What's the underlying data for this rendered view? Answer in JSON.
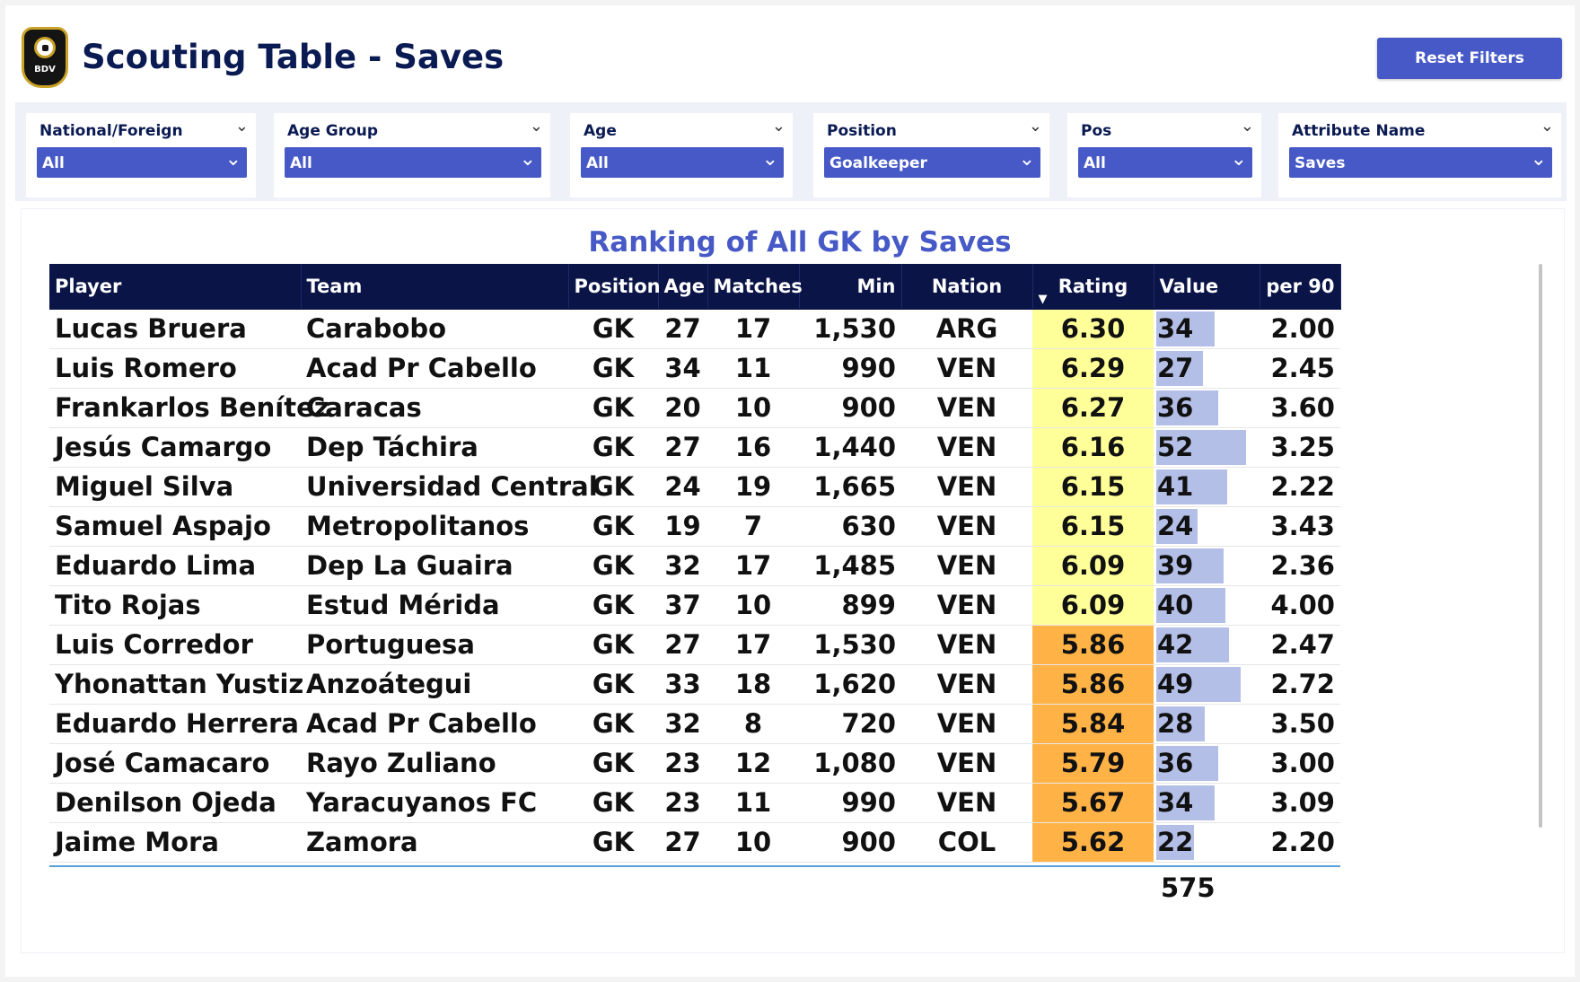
{
  "header": {
    "logo_text": "BDV",
    "title": "Scouting Table - Saves",
    "reset_label": "Reset Filters"
  },
  "filters": [
    {
      "label": "National/Foreign",
      "value": "All"
    },
    {
      "label": "Age Group",
      "value": "All"
    },
    {
      "label": "Age",
      "value": "All"
    },
    {
      "label": "Position",
      "value": "Goalkeeper"
    },
    {
      "label": "Pos",
      "value": "All"
    },
    {
      "label": "Attribute Name",
      "value": "Saves"
    }
  ],
  "table": {
    "title": "Ranking of All GK by Saves",
    "columns": [
      "Player",
      "Team",
      "Position",
      "Age",
      "Matches",
      "Min",
      "Nation",
      "Rating",
      "Value",
      "per 90"
    ],
    "sort_icon": "sort-descending-icon",
    "colors": {
      "high_rating": "#ffff99",
      "low_rating": "#ffb347",
      "value_bar": "#b4bfe8",
      "header": "#0a1447"
    },
    "value_max": 52,
    "rows": [
      {
        "player": "Lucas Bruera",
        "team": "Carabobo",
        "position": "GK",
        "age": "27",
        "matches": "17",
        "min": "1,530",
        "nation": "ARG",
        "rating": "6.30",
        "value": 34,
        "per90": "2.00"
      },
      {
        "player": "Luis Romero",
        "team": "Acad Pr Cabello",
        "position": "GK",
        "age": "34",
        "matches": "11",
        "min": "990",
        "nation": "VEN",
        "rating": "6.29",
        "value": 27,
        "per90": "2.45"
      },
      {
        "player": "Frankarlos Benítez",
        "team": "Caracas",
        "position": "GK",
        "age": "20",
        "matches": "10",
        "min": "900",
        "nation": "VEN",
        "rating": "6.27",
        "value": 36,
        "per90": "3.60"
      },
      {
        "player": "Jesús Camargo",
        "team": "Dep Táchira",
        "position": "GK",
        "age": "27",
        "matches": "16",
        "min": "1,440",
        "nation": "VEN",
        "rating": "6.16",
        "value": 52,
        "per90": "3.25"
      },
      {
        "player": "Miguel Silva",
        "team": "Universidad Central",
        "position": "GK",
        "age": "24",
        "matches": "19",
        "min": "1,665",
        "nation": "VEN",
        "rating": "6.15",
        "value": 41,
        "per90": "2.22"
      },
      {
        "player": "Samuel Aspajo",
        "team": "Metropolitanos",
        "position": "GK",
        "age": "19",
        "matches": "7",
        "min": "630",
        "nation": "VEN",
        "rating": "6.15",
        "value": 24,
        "per90": "3.43"
      },
      {
        "player": "Eduardo Lima",
        "team": "Dep La Guaira",
        "position": "GK",
        "age": "32",
        "matches": "17",
        "min": "1,485",
        "nation": "VEN",
        "rating": "6.09",
        "value": 39,
        "per90": "2.36"
      },
      {
        "player": "Tito Rojas",
        "team": "Estud Mérida",
        "position": "GK",
        "age": "37",
        "matches": "10",
        "min": "899",
        "nation": "VEN",
        "rating": "6.09",
        "value": 40,
        "per90": "4.00"
      },
      {
        "player": "Luis Corredor",
        "team": "Portuguesa",
        "position": "GK",
        "age": "27",
        "matches": "17",
        "min": "1,530",
        "nation": "VEN",
        "rating": "5.86",
        "value": 42,
        "per90": "2.47"
      },
      {
        "player": "Yhonattan Yustiz",
        "team": "Anzoátegui",
        "position": "GK",
        "age": "33",
        "matches": "18",
        "min": "1,620",
        "nation": "VEN",
        "rating": "5.86",
        "value": 49,
        "per90": "2.72"
      },
      {
        "player": "Eduardo Herrera",
        "team": "Acad Pr Cabello",
        "position": "GK",
        "age": "32",
        "matches": "8",
        "min": "720",
        "nation": "VEN",
        "rating": "5.84",
        "value": 28,
        "per90": "3.50"
      },
      {
        "player": "José Camacaro",
        "team": "Rayo Zuliano",
        "position": "GK",
        "age": "23",
        "matches": "12",
        "min": "1,080",
        "nation": "VEN",
        "rating": "5.79",
        "value": 36,
        "per90": "3.00"
      },
      {
        "player": "Denilson Ojeda",
        "team": "Yaracuyanos FC",
        "position": "GK",
        "age": "23",
        "matches": "11",
        "min": "990",
        "nation": "VEN",
        "rating": "5.67",
        "value": 34,
        "per90": "3.09"
      },
      {
        "player": "Jaime Mora",
        "team": "Zamora",
        "position": "GK",
        "age": "27",
        "matches": "10",
        "min": "900",
        "nation": "COL",
        "rating": "5.62",
        "value": 22,
        "per90": "2.20"
      }
    ],
    "total_value": "575"
  }
}
